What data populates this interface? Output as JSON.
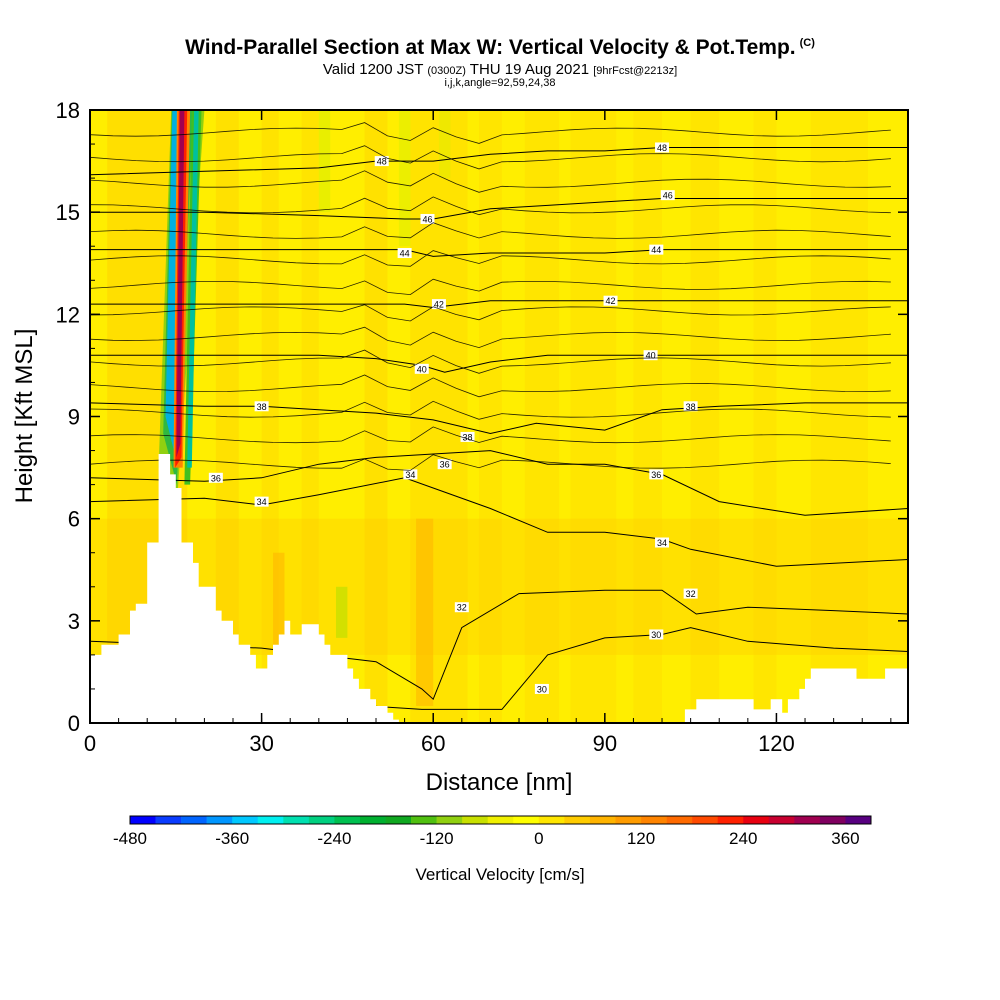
{
  "header": {
    "title": "Wind-Parallel Section at Max W: Vertical Velocity & Pot.Temp.",
    "title_mark": "(C)",
    "valid_prefix": "Valid 1200 JST",
    "valid_utc": "(0300Z)",
    "valid_date": "THU 19 Aug 2021",
    "forecast_info": "[9hrFcst@2213z]",
    "indices": "i,j,k,angle=92,59,24,38"
  },
  "chart_data": {
    "type": "heatmap",
    "xlabel": "Distance [nm]",
    "ylabel": "Height [Kft MSL]",
    "xlim": [
      0,
      143
    ],
    "ylim": [
      0,
      18
    ],
    "x_ticks": [
      "0",
      "30",
      "60",
      "90",
      "120"
    ],
    "y_ticks": [
      "0",
      "3",
      "6",
      "9",
      "12",
      "15",
      "18"
    ],
    "field": "Vertical Velocity",
    "contour_field": "Potential Temperature",
    "colorbar": {
      "title": "Vertical Velocity [cm/s]",
      "min": -480,
      "max": 390,
      "step": 30,
      "tick_labels": [
        "-480",
        "-360",
        "-240",
        "-120",
        "0",
        "120",
        "240",
        "360"
      ],
      "colors": [
        "#0000ff",
        "#0a3cff",
        "#0064ff",
        "#0096ff",
        "#00c8ff",
        "#00f0f0",
        "#00e0b0",
        "#00d080",
        "#00c050",
        "#00b030",
        "#10a820",
        "#50c010",
        "#90d010",
        "#c8e000",
        "#f0f000",
        "#ffff00",
        "#ffe600",
        "#ffcc00",
        "#ffb400",
        "#ff9c00",
        "#ff8400",
        "#ff6a00",
        "#ff4a00",
        "#ff2000",
        "#e80010",
        "#c80030",
        "#a00050",
        "#800060",
        "#580080"
      ]
    },
    "theta_contours": [
      {
        "value": 30,
        "x": [
          0,
          20,
          40,
          58,
          60,
          72,
          80,
          90,
          100,
          105,
          115,
          130,
          143
        ],
        "y": [
          1.0,
          0.9,
          0.6,
          0.4,
          0.4,
          0.4,
          2.0,
          2.5,
          2.6,
          2.8,
          2.4,
          2.2,
          2.1
        ],
        "labels": [
          {
            "x": 79,
            "y": 1.0
          },
          {
            "x": 99,
            "y": 2.6
          }
        ]
      },
      {
        "value": 32,
        "x": [
          0,
          30,
          50,
          58,
          60,
          65,
          75,
          90,
          100,
          106,
          115,
          130,
          143
        ],
        "y": [
          2.4,
          2.2,
          1.8,
          1.0,
          0.7,
          2.8,
          3.8,
          3.9,
          3.9,
          3.2,
          3.4,
          3.3,
          3.2
        ],
        "labels": [
          {
            "x": 65,
            "y": 3.4
          },
          {
            "x": 105,
            "y": 3.8
          }
        ]
      },
      {
        "value": 34,
        "x": [
          0,
          20,
          30,
          40,
          55,
          60,
          70,
          80,
          90,
          100,
          105,
          120,
          143
        ],
        "y": [
          6.5,
          6.6,
          6.4,
          6.7,
          7.2,
          6.9,
          6.3,
          5.6,
          5.6,
          5.4,
          5.1,
          4.6,
          4.8
        ],
        "labels": [
          {
            "x": 30,
            "y": 6.5
          },
          {
            "x": 56,
            "y": 7.3
          },
          {
            "x": 100,
            "y": 5.3
          }
        ]
      },
      {
        "value": 36,
        "x": [
          0,
          20,
          30,
          40,
          50,
          60,
          70,
          80,
          90,
          100,
          110,
          125,
          143
        ],
        "y": [
          7.2,
          7.1,
          7.2,
          7.6,
          7.8,
          7.9,
          8.0,
          7.6,
          7.6,
          7.3,
          6.5,
          6.1,
          6.3
        ],
        "labels": [
          {
            "x": 22,
            "y": 7.2
          },
          {
            "x": 62,
            "y": 7.6
          },
          {
            "x": 99,
            "y": 7.3
          }
        ]
      },
      {
        "value": 38,
        "x": [
          0,
          20,
          30,
          40,
          50,
          60,
          70,
          78,
          90,
          100,
          110,
          125,
          143
        ],
        "y": [
          9.4,
          9.3,
          9.3,
          9.2,
          9.1,
          8.9,
          8.5,
          8.8,
          8.6,
          9.2,
          9.3,
          9.4,
          9.4
        ],
        "labels": [
          {
            "x": 30,
            "y": 9.3
          },
          {
            "x": 66,
            "y": 8.4
          },
          {
            "x": 105,
            "y": 9.3
          }
        ]
      },
      {
        "value": 40,
        "x": [
          0,
          20,
          40,
          50,
          58,
          62,
          70,
          80,
          90,
          100,
          110,
          125,
          143
        ],
        "y": [
          10.8,
          10.8,
          10.8,
          10.7,
          10.5,
          10.3,
          10.6,
          10.8,
          10.8,
          10.8,
          10.8,
          10.8,
          10.8
        ],
        "labels": [
          {
            "x": 58,
            "y": 10.4
          },
          {
            "x": 98,
            "y": 10.8
          }
        ]
      },
      {
        "value": 42,
        "x": [
          0,
          20,
          40,
          55,
          60,
          70,
          80,
          90,
          100,
          110,
          125,
          143
        ],
        "y": [
          12.3,
          12.3,
          12.3,
          12.3,
          12.2,
          12.4,
          12.4,
          12.4,
          12.4,
          12.4,
          12.4,
          12.4
        ],
        "labels": [
          {
            "x": 61,
            "y": 12.3
          },
          {
            "x": 91,
            "y": 12.4
          }
        ]
      },
      {
        "value": 44,
        "x": [
          0,
          20,
          40,
          55,
          60,
          70,
          80,
          90,
          100,
          110,
          125,
          143
        ],
        "y": [
          13.9,
          13.9,
          13.9,
          13.9,
          13.7,
          13.8,
          13.8,
          13.8,
          13.9,
          13.9,
          13.9,
          13.9
        ],
        "labels": [
          {
            "x": 55,
            "y": 13.8
          },
          {
            "x": 99,
            "y": 13.9
          }
        ]
      },
      {
        "value": 46,
        "x": [
          0,
          20,
          40,
          55,
          60,
          70,
          80,
          90,
          100,
          110,
          125,
          143
        ],
        "y": [
          15.0,
          15.0,
          14.9,
          14.8,
          14.8,
          15.1,
          15.2,
          15.3,
          15.4,
          15.4,
          15.4,
          15.4
        ],
        "labels": [
          {
            "x": 59,
            "y": 14.8
          },
          {
            "x": 101,
            "y": 15.5
          }
        ]
      },
      {
        "value": 48,
        "x": [
          0,
          20,
          40,
          50,
          60,
          70,
          80,
          90,
          100,
          110,
          125,
          143
        ],
        "y": [
          16.1,
          16.2,
          16.3,
          16.5,
          16.5,
          16.7,
          16.8,
          16.8,
          16.9,
          16.9,
          16.9,
          16.9
        ],
        "labels": [
          {
            "x": 51,
            "y": 16.5
          },
          {
            "x": 100,
            "y": 16.9
          }
        ]
      }
    ],
    "terrain": {
      "x": [
        0,
        2,
        2,
        5,
        5,
        7,
        7,
        8,
        8,
        10,
        10,
        12,
        12,
        14,
        14,
        15,
        15,
        16,
        16,
        18,
        18,
        19,
        19,
        22,
        22,
        23,
        23,
        25,
        25,
        26,
        26,
        28,
        28,
        29,
        29,
        31,
        31,
        32,
        32,
        33,
        33,
        34,
        34,
        35,
        35,
        37,
        37,
        40,
        40,
        41,
        41,
        42,
        42,
        45,
        45,
        46,
        46,
        47,
        47,
        49,
        49,
        50,
        50,
        52,
        52,
        53,
        53,
        54,
        54,
        55,
        55,
        104,
        104,
        106,
        106,
        116,
        116,
        119,
        119,
        121,
        121,
        122,
        122,
        124,
        124,
        125,
        125,
        126,
        126,
        127,
        127,
        129,
        129,
        131,
        131,
        134,
        134,
        137,
        137,
        139,
        139,
        141,
        141,
        143
      ],
      "y": [
        2.0,
        2.0,
        2.3,
        2.3,
        2.6,
        2.6,
        3.3,
        3.3,
        3.5,
        3.5,
        5.3,
        5.3,
        7.9,
        7.9,
        7.3,
        7.3,
        6.9,
        6.9,
        5.3,
        5.3,
        4.7,
        4.7,
        4.0,
        4.0,
        3.3,
        3.3,
        3.0,
        3.0,
        2.6,
        2.6,
        2.3,
        2.3,
        2.0,
        2.0,
        1.6,
        1.6,
        2.0,
        2.0,
        2.3,
        2.3,
        2.6,
        2.6,
        3.0,
        3.0,
        2.6,
        2.6,
        2.9,
        2.9,
        2.6,
        2.6,
        2.3,
        2.3,
        2.0,
        2.0,
        1.6,
        1.6,
        1.3,
        1.3,
        1.0,
        1.0,
        0.7,
        0.7,
        0.5,
        0.5,
        0.3,
        0.3,
        0.1,
        0.1,
        0.0,
        0.0,
        0.0,
        0.0,
        0.4,
        0.4,
        0.7,
        0.7,
        0.4,
        0.4,
        0.7,
        0.7,
        0.3,
        0.3,
        0.7,
        0.7,
        1.0,
        1.0,
        1.3,
        1.3,
        1.6,
        1.6,
        1.6,
        1.6,
        1.6,
        1.6,
        1.6,
        1.6,
        1.3,
        1.3,
        1.3,
        1.3,
        1.6,
        1.6,
        1.6,
        1.6
      ]
    }
  }
}
